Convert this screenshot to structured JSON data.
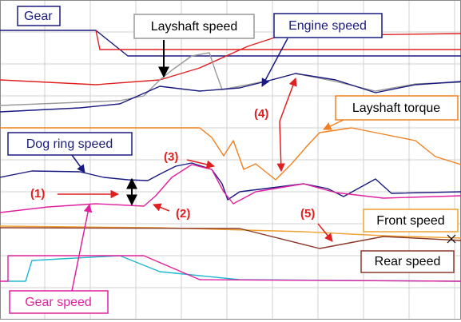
{
  "labels": {
    "gear": "Gear",
    "layshaft_speed": "Layshaft speed",
    "engine_speed": "Engine speed",
    "layshaft_torque": "Layshaft torque",
    "dog_ring_speed": "Dog ring speed",
    "front_speed": "Front speed",
    "rear_speed": "Rear speed",
    "gear_speed": "Gear speed"
  },
  "annotations": [
    "(1)",
    "(2)",
    "(3)",
    "(4)",
    "(5)"
  ]
}
